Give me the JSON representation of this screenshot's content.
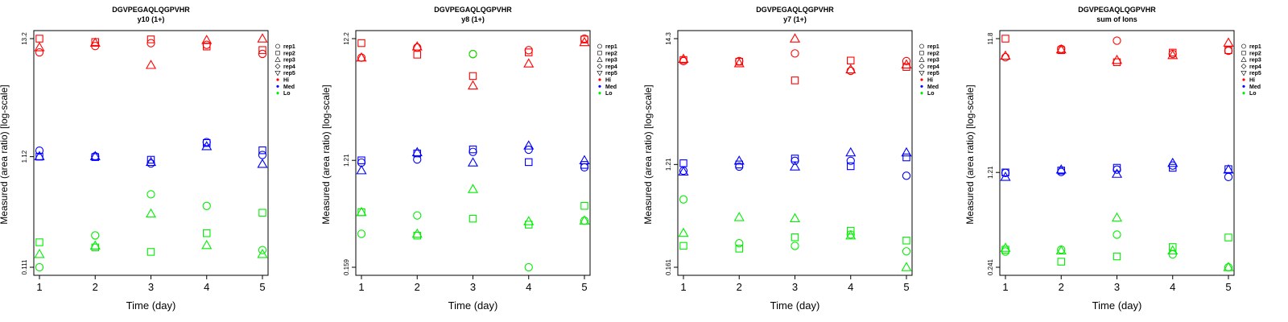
{
  "colors": {
    "Hi": "#ff0000",
    "Med": "#0000ff",
    "Lo": "#00ee00"
  },
  "chart_data": [
    {
      "type": "scatter",
      "title": "DGVPEGAQLQGPVHR",
      "subtitle": "y10 (1+)",
      "xlabel": "Time (day)",
      "ylabel": "Measured (area ratio) [log-scale]",
      "y_scale": "log",
      "grid": false,
      "legend": "right",
      "xlim": [
        1,
        5
      ],
      "xticks": [
        "1",
        "2",
        "3",
        "4",
        "5"
      ],
      "ylim": [
        0.111,
        13.2
      ],
      "yticks": [
        {
          "value": 13.2,
          "label": "13.2"
        },
        {
          "value": 1.12,
          "label": "1.12"
        },
        {
          "value": 0.111,
          "label": "0.111"
        }
      ],
      "legend_entries": [
        {
          "label": "rep1",
          "kind": "shape",
          "shape": "circle"
        },
        {
          "label": "rep2",
          "kind": "shape",
          "shape": "square"
        },
        {
          "label": "rep3",
          "kind": "shape",
          "shape": "triangle"
        },
        {
          "label": "rep4",
          "kind": "shape",
          "shape": "diamond"
        },
        {
          "label": "rep5",
          "kind": "shape",
          "shape": "triangle-down"
        },
        {
          "label": "Hi",
          "kind": "color",
          "color": "#ff0000"
        },
        {
          "label": "Med",
          "kind": "color",
          "color": "#0000ff"
        },
        {
          "label": "Lo",
          "kind": "color",
          "color": "#00ee00"
        }
      ],
      "series": [
        {
          "level": "Hi",
          "rep": "rep1",
          "x": [
            1,
            2,
            3,
            4,
            5
          ],
          "y": [
            9.9,
            11.3,
            12.0,
            11.6,
            9.6
          ]
        },
        {
          "level": "Hi",
          "rep": "rep2",
          "x": [
            1,
            2,
            3,
            4,
            5
          ],
          "y": [
            13.2,
            12.3,
            13.0,
            11.2,
            10.4
          ]
        },
        {
          "level": "Hi",
          "rep": "rep3",
          "x": [
            1,
            2,
            3,
            4,
            5
          ],
          "y": [
            11.0,
            12.1,
            7.6,
            12.8,
            13.2
          ]
        },
        {
          "level": "Med",
          "rep": "rep1",
          "x": [
            1,
            2,
            3,
            4,
            5
          ],
          "y": [
            1.27,
            1.13,
            0.97,
            1.52,
            1.16
          ]
        },
        {
          "level": "Med",
          "rep": "rep2",
          "x": [
            1,
            2,
            3,
            4,
            5
          ],
          "y": [
            1.12,
            1.11,
            1.05,
            1.49,
            1.28
          ]
        },
        {
          "level": "Med",
          "rep": "rep3",
          "x": [
            1,
            2,
            3,
            4,
            5
          ],
          "y": [
            1.13,
            1.13,
            1.0,
            1.39,
            0.96
          ]
        },
        {
          "level": "Lo",
          "rep": "rep1",
          "x": [
            1,
            2,
            3,
            4,
            5
          ],
          "y": [
            0.111,
            0.216,
            0.51,
            0.4,
            0.159
          ]
        },
        {
          "level": "Lo",
          "rep": "rep2",
          "x": [
            1,
            2,
            3,
            4,
            5
          ],
          "y": [
            0.187,
            0.168,
            0.153,
            0.226,
            0.347
          ]
        },
        {
          "level": "Lo",
          "rep": "rep3",
          "x": [
            1,
            2,
            3,
            4,
            5
          ],
          "y": [
            0.146,
            0.174,
            0.34,
            0.176,
            0.146
          ]
        }
      ]
    },
    {
      "type": "scatter",
      "title": "DGVPEGAQLQGPVHR",
      "subtitle": "y8 (1+)",
      "xlabel": "Time (day)",
      "ylabel": "Measured (area ratio) [log-scale]",
      "y_scale": "log",
      "grid": false,
      "legend": "right",
      "xlim": [
        1,
        5
      ],
      "xticks": [
        "1",
        "2",
        "3",
        "4",
        "5"
      ],
      "ylim": [
        0.159,
        12.2
      ],
      "yticks": [
        {
          "value": 12.2,
          "label": "12.2"
        },
        {
          "value": 1.21,
          "label": "1.21"
        },
        {
          "value": 0.159,
          "label": "0.159"
        }
      ],
      "legend_entries": [
        {
          "label": "rep1",
          "kind": "shape",
          "shape": "circle"
        },
        {
          "label": "rep2",
          "kind": "shape",
          "shape": "square"
        },
        {
          "label": "rep3",
          "kind": "shape",
          "shape": "triangle"
        },
        {
          "label": "rep4",
          "kind": "shape",
          "shape": "diamond"
        },
        {
          "label": "rep5",
          "kind": "shape",
          "shape": "triangle-down"
        },
        {
          "label": "Hi",
          "kind": "color",
          "color": "#ff0000"
        },
        {
          "label": "Med",
          "kind": "color",
          "color": "#0000ff"
        },
        {
          "label": "Lo",
          "kind": "color",
          "color": "#00ee00"
        }
      ],
      "series": [
        {
          "level": "Hi",
          "rep": "rep1",
          "x": [
            1,
            2,
            3,
            4,
            5
          ],
          "y": [
            8.5,
            10.3,
            9.1,
            9.8,
            12.2
          ]
        },
        {
          "level": "Hi",
          "rep": "rep2",
          "x": [
            1,
            2,
            3,
            4,
            5
          ],
          "y": [
            11.2,
            9.0,
            6.0,
            9.4,
            12.0
          ]
        },
        {
          "level": "Hi",
          "rep": "rep3",
          "x": [
            1,
            2,
            3,
            4,
            5
          ],
          "y": [
            8.5,
            10.5,
            5.0,
            7.6,
            11.4
          ]
        },
        {
          "level": "Med",
          "rep": "rep1",
          "x": [
            1,
            2,
            3,
            4,
            5
          ],
          "y": [
            1.16,
            1.23,
            1.42,
            1.48,
            1.06
          ]
        },
        {
          "level": "Med",
          "rep": "rep2",
          "x": [
            1,
            2,
            3,
            4,
            5
          ],
          "y": [
            1.21,
            1.38,
            1.49,
            1.17,
            1.11
          ]
        },
        {
          "level": "Med",
          "rep": "rep3",
          "x": [
            1,
            2,
            3,
            4,
            5
          ],
          "y": [
            1.0,
            1.41,
            1.16,
            1.6,
            1.21
          ]
        },
        {
          "level": "Lo",
          "rep": "rep1",
          "x": [
            1,
            2,
            3,
            4,
            5
          ],
          "y": [
            0.3,
            0.425,
            9.1,
            0.159,
            0.385
          ]
        },
        {
          "level": "Lo",
          "rep": "rep2",
          "x": [
            1,
            2,
            3,
            4,
            5
          ],
          "y": [
            0.452,
            0.29,
            0.4,
            0.357,
            0.51
          ]
        },
        {
          "level": "Lo",
          "rep": "rep3",
          "x": [
            1,
            2,
            3,
            4,
            5
          ],
          "y": [
            0.452,
            0.3,
            0.7,
            0.38,
            0.385
          ]
        }
      ]
    },
    {
      "type": "scatter",
      "title": "DGVPEGAQLQGPVHR",
      "subtitle": "y7 (1+)",
      "xlabel": "Time (day)",
      "ylabel": "Measured (area ratio) [log-scale]",
      "y_scale": "log",
      "grid": false,
      "legend": "right",
      "xlim": [
        1,
        5
      ],
      "xticks": [
        "1",
        "2",
        "3",
        "4",
        "5"
      ],
      "ylim": [
        0.161,
        14.3
      ],
      "yticks": [
        {
          "value": 14.3,
          "label": "14.3"
        },
        {
          "value": 1.21,
          "label": "1.21"
        },
        {
          "value": 0.161,
          "label": "0.161"
        }
      ],
      "legend_entries": [
        {
          "label": "rep1",
          "kind": "shape",
          "shape": "circle"
        },
        {
          "label": "rep2",
          "kind": "shape",
          "shape": "square"
        },
        {
          "label": "rep3",
          "kind": "shape",
          "shape": "triangle"
        },
        {
          "label": "rep4",
          "kind": "shape",
          "shape": "diamond"
        },
        {
          "label": "rep5",
          "kind": "shape",
          "shape": "triangle-down"
        },
        {
          "label": "Hi",
          "kind": "color",
          "color": "#ff0000"
        },
        {
          "label": "Med",
          "kind": "color",
          "color": "#0000ff"
        },
        {
          "label": "Lo",
          "kind": "color",
          "color": "#00ee00"
        }
      ],
      "series": [
        {
          "level": "Hi",
          "rep": "rep1",
          "x": [
            1,
            2,
            3,
            4,
            5
          ],
          "y": [
            9.2,
            9.2,
            10.7,
            7.6,
            9.2
          ]
        },
        {
          "level": "Hi",
          "rep": "rep2",
          "x": [
            1,
            2,
            3,
            4,
            5
          ],
          "y": [
            9.4,
            9.1,
            6.3,
            9.3,
            8.2
          ]
        },
        {
          "level": "Hi",
          "rep": "rep3",
          "x": [
            1,
            2,
            3,
            4,
            5
          ],
          "y": [
            9.6,
            8.8,
            14.3,
            7.8,
            8.6
          ]
        },
        {
          "level": "Med",
          "rep": "rep1",
          "x": [
            1,
            2,
            3,
            4,
            5
          ],
          "y": [
            1.07,
            1.16,
            1.3,
            1.3,
            0.97
          ]
        },
        {
          "level": "Med",
          "rep": "rep2",
          "x": [
            1,
            2,
            3,
            4,
            5
          ],
          "y": [
            1.24,
            1.21,
            1.36,
            1.17,
            1.39
          ]
        },
        {
          "level": "Med",
          "rep": "rep3",
          "x": [
            1,
            2,
            3,
            4,
            5
          ],
          "y": [
            1.05,
            1.3,
            1.16,
            1.53,
            1.53
          ]
        },
        {
          "level": "Lo",
          "rep": "rep1",
          "x": [
            1,
            2,
            3,
            4,
            5
          ],
          "y": [
            0.61,
            0.258,
            0.245,
            0.306,
            0.22
          ]
        },
        {
          "level": "Lo",
          "rep": "rep2",
          "x": [
            1,
            2,
            3,
            4,
            5
          ],
          "y": [
            0.245,
            0.232,
            0.29,
            0.33,
            0.272
          ]
        },
        {
          "level": "Lo",
          "rep": "rep3",
          "x": [
            1,
            2,
            3,
            4,
            5
          ],
          "y": [
            0.315,
            0.43,
            0.42,
            0.3,
            0.161
          ]
        }
      ]
    },
    {
      "type": "scatter",
      "title": "DGVPEGAQLQGPVHR",
      "subtitle": "sum of Ions",
      "xlabel": "Time (day)",
      "ylabel": "Measured (area ratio) [log-scale]",
      "y_scale": "log",
      "grid": false,
      "legend": "right",
      "xlim": [
        1,
        5
      ],
      "xticks": [
        "1",
        "2",
        "3",
        "4",
        "5"
      ],
      "ylim": [
        0.241,
        11.8
      ],
      "yticks": [
        {
          "value": 11.8,
          "label": "11.8"
        },
        {
          "value": 1.21,
          "label": "1.21"
        },
        {
          "value": 0.241,
          "label": "0.241"
        }
      ],
      "legend_entries": [
        {
          "label": "rep1",
          "kind": "shape",
          "shape": "circle"
        },
        {
          "label": "rep2",
          "kind": "shape",
          "shape": "square"
        },
        {
          "label": "rep3",
          "kind": "shape",
          "shape": "triangle"
        },
        {
          "label": "rep4",
          "kind": "shape",
          "shape": "diamond"
        },
        {
          "label": "rep5",
          "kind": "shape",
          "shape": "triangle-down"
        },
        {
          "label": "Hi",
          "kind": "color",
          "color": "#ff0000"
        },
        {
          "label": "Med",
          "kind": "color",
          "color": "#0000ff"
        },
        {
          "label": "Lo",
          "kind": "color",
          "color": "#00ee00"
        }
      ],
      "series": [
        {
          "level": "Hi",
          "rep": "rep1",
          "x": [
            1,
            2,
            3,
            4,
            5
          ],
          "y": [
            8.6,
            9.9,
            11.4,
            9.1,
            9.6
          ]
        },
        {
          "level": "Hi",
          "rep": "rep2",
          "x": [
            1,
            2,
            3,
            4,
            5
          ],
          "y": [
            11.8,
            9.7,
            7.9,
            9.3,
            9.7
          ]
        },
        {
          "level": "Hi",
          "rep": "rep3",
          "x": [
            1,
            2,
            3,
            4,
            5
          ],
          "y": [
            8.8,
            9.8,
            8.2,
            8.9,
            11.0
          ]
        },
        {
          "level": "Med",
          "rep": "rep1",
          "x": [
            1,
            2,
            3,
            4,
            5
          ],
          "y": [
            1.2,
            1.22,
            1.27,
            1.36,
            1.12
          ]
        },
        {
          "level": "Med",
          "rep": "rep2",
          "x": [
            1,
            2,
            3,
            4,
            5
          ],
          "y": [
            1.21,
            1.25,
            1.31,
            1.31,
            1.28
          ]
        },
        {
          "level": "Med",
          "rep": "rep3",
          "x": [
            1,
            2,
            3,
            4,
            5
          ],
          "y": [
            1.12,
            1.27,
            1.18,
            1.42,
            1.27
          ]
        },
        {
          "level": "Lo",
          "rep": "rep1",
          "x": [
            1,
            2,
            3,
            4,
            5
          ],
          "y": [
            0.315,
            0.325,
            0.42,
            0.3,
            0.241
          ]
        },
        {
          "level": "Lo",
          "rep": "rep2",
          "x": [
            1,
            2,
            3,
            4,
            5
          ],
          "y": [
            0.325,
            0.265,
            0.29,
            0.34,
            0.4
          ]
        },
        {
          "level": "Lo",
          "rep": "rep3",
          "x": [
            1,
            2,
            3,
            4,
            5
          ],
          "y": [
            0.335,
            0.32,
            0.56,
            0.32,
            0.241
          ]
        }
      ]
    }
  ]
}
